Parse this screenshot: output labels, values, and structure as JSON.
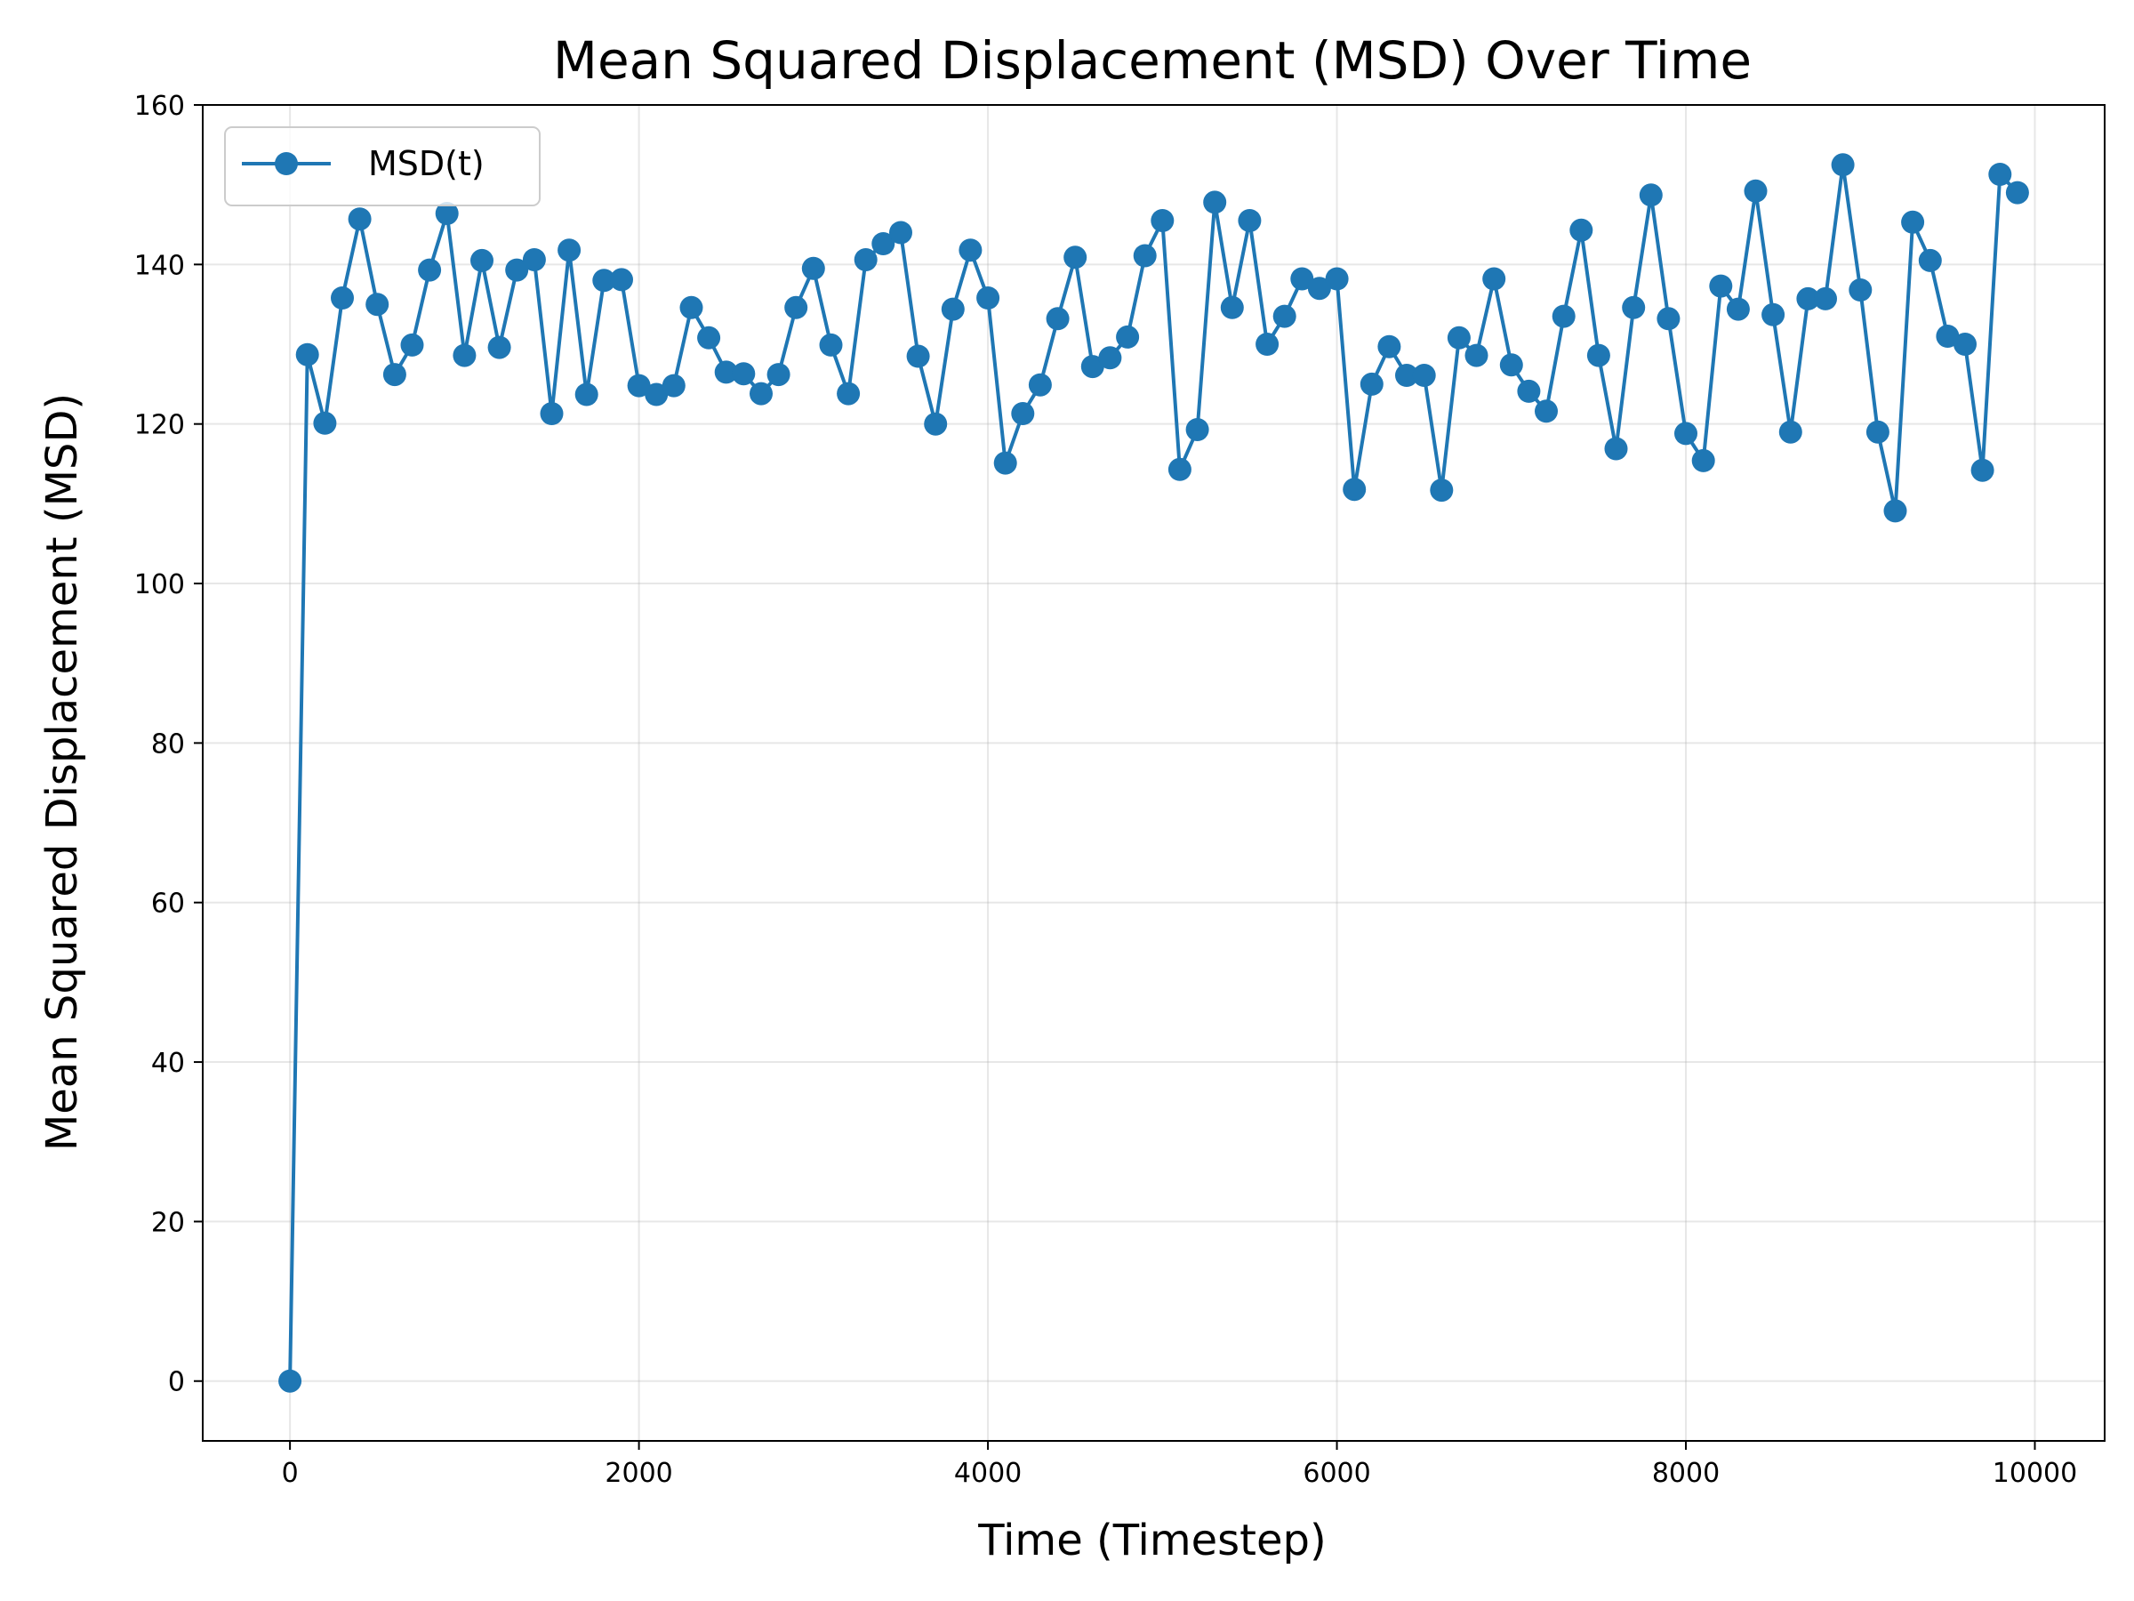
{
  "chart_data": {
    "type": "line",
    "title": "Mean Squared Displacement (MSD) Over Time",
    "xlabel": "Time (Timestep)",
    "ylabel": "Mean Squared Displacement (MSD)",
    "xlim": [
      -500,
      10400
    ],
    "ylim": [
      -7.5,
      160
    ],
    "xticks": [
      0,
      2000,
      4000,
      6000,
      8000,
      10000
    ],
    "yticks": [
      0,
      20,
      40,
      60,
      80,
      100,
      120,
      140,
      160
    ],
    "grid": true,
    "legend_position": "upper-left",
    "series": [
      {
        "name": "MSD(t)",
        "color": "#1f77b4",
        "marker": "circle",
        "x": [
          0,
          100,
          200,
          300,
          400,
          500,
          600,
          700,
          800,
          900,
          1000,
          1100,
          1200,
          1300,
          1400,
          1500,
          1600,
          1700,
          1800,
          1900,
          2000,
          2100,
          2200,
          2300,
          2400,
          2500,
          2600,
          2700,
          2800,
          2900,
          3000,
          3100,
          3200,
          3300,
          3400,
          3500,
          3600,
          3700,
          3800,
          3900,
          4000,
          4100,
          4200,
          4300,
          4400,
          4500,
          4600,
          4700,
          4800,
          4900,
          5000,
          5100,
          5200,
          5300,
          5400,
          5500,
          5600,
          5700,
          5800,
          5900,
          6000,
          6100,
          6200,
          6300,
          6400,
          6500,
          6600,
          6700,
          6800,
          6900,
          7000,
          7100,
          7200,
          7300,
          7400,
          7500,
          7600,
          7700,
          7800,
          7900,
          8000,
          8100,
          8200,
          8300,
          8400,
          8500,
          8600,
          8700,
          8800,
          8900,
          9000,
          9100,
          9200,
          9300,
          9400,
          9500,
          9600,
          9700,
          9800,
          9900
        ],
        "y": [
          0,
          128.7,
          120.1,
          135.8,
          145.7,
          135.0,
          126.2,
          129.9,
          139.3,
          146.4,
          128.6,
          140.5,
          129.6,
          139.3,
          140.6,
          121.3,
          141.8,
          123.7,
          138.0,
          138.1,
          124.8,
          123.7,
          124.8,
          134.6,
          130.8,
          126.5,
          126.3,
          123.8,
          126.2,
          134.6,
          139.5,
          129.9,
          123.8,
          140.6,
          142.6,
          144.0,
          128.5,
          120.0,
          134.4,
          141.8,
          135.8,
          115.1,
          121.3,
          124.9,
          133.2,
          140.9,
          127.2,
          128.3,
          130.9,
          141.1,
          145.5,
          114.3,
          119.3,
          147.8,
          134.6,
          145.5,
          130.0,
          133.5,
          138.2,
          137.0,
          138.2,
          111.8,
          125.0,
          129.7,
          126.1,
          126.1,
          111.7,
          130.8,
          128.6,
          138.2,
          127.4,
          124.1,
          121.6,
          133.5,
          144.3,
          128.6,
          116.9,
          134.6,
          148.7,
          133.2,
          118.8,
          115.4,
          137.3,
          134.4,
          149.2,
          133.7,
          119.0,
          135.7,
          135.7,
          152.5,
          136.8,
          119.0,
          109.1,
          145.3,
          140.5,
          131.0,
          130.0,
          114.2,
          151.3,
          149.0
        ]
      }
    ]
  }
}
